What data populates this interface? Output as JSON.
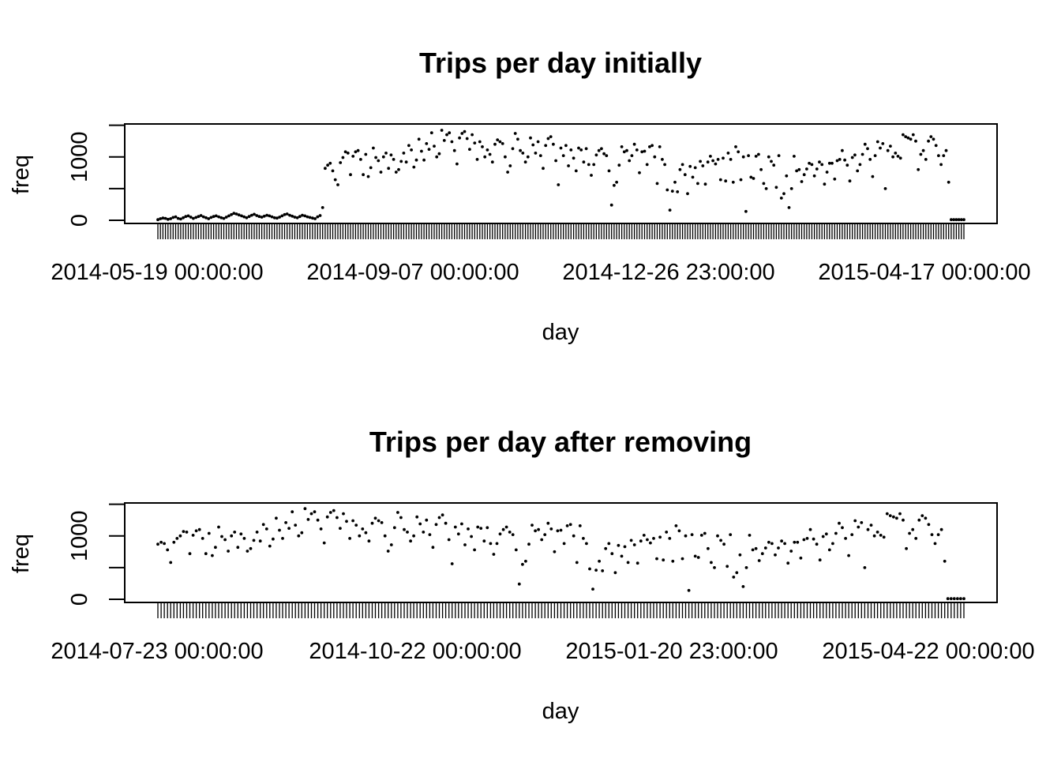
{
  "colors": {
    "background": "#ffffff",
    "ink": "#000000"
  },
  "chart_data": [
    {
      "type": "scatter",
      "title": "Trips per day initially",
      "xlabel": "day",
      "ylabel": "freq",
      "x_axis_kind": "categorical dates (one tick per day)",
      "x_range": [
        "2014-05-19 00:00:00",
        "2015-06-20 00:00:00"
      ],
      "x_tick_labels": [
        "2014-05-19 00:00:00",
        "2014-09-07 00:00:00",
        "2014-12-26 23:00:00",
        "2015-04-17 00:00:00"
      ],
      "ylim": [
        -50,
        1520
      ],
      "y_ticks": [
        0,
        1000
      ],
      "y_tick_labels": [
        "0",
        "1000"
      ],
      "grid": false,
      "legend": "none",
      "marker_color": "#000000",
      "series": [
        {
          "values": [
            10,
            25,
            35,
            30,
            15,
            25,
            45,
            55,
            30,
            20,
            40,
            60,
            70,
            50,
            30,
            45,
            60,
            75,
            55,
            40,
            25,
            45,
            60,
            70,
            55,
            40,
            30,
            50,
            70,
            90,
            110,
            100,
            85,
            70,
            55,
            40,
            60,
            80,
            95,
            75,
            60,
            50,
            65,
            80,
            70,
            55,
            40,
            35,
            50,
            70,
            90,
            100,
            80,
            65,
            50,
            40,
            60,
            80,
            70,
            55,
            45,
            35,
            25,
            55,
            75,
            200,
            820,
            870,
            900,
            780,
            640,
            560,
            910,
            990,
            1080,
            1060,
            720,
            1010,
            1080,
            1100,
            960,
            720,
            1040,
            690,
            830,
            1140,
            990,
            940,
            760,
            1000,
            1060,
            820,
            1030,
            960,
            760,
            800,
            930,
            1060,
            920,
            1180,
            1110,
            840,
            950,
            1280,
            1090,
            950,
            1210,
            1120,
            1380,
            1170,
            1000,
            1050,
            1420,
            1260,
            1350,
            1380,
            1240,
            1100,
            890,
            1300,
            1370,
            1400,
            1290,
            1120,
            1350,
            1220,
            960,
            1240,
            1160,
            1000,
            1110,
            1040,
            920,
            1200,
            1270,
            1240,
            1210,
            1000,
            760,
            860,
            1130,
            1370,
            1280,
            1100,
            1060,
            920,
            1000,
            1300,
            1190,
            1060,
            1240,
            1020,
            820,
            1180,
            1290,
            1320,
            1200,
            940,
            560,
            1140,
            1020,
            1180,
            860,
            1110,
            980,
            780,
            1140,
            1110,
            920,
            1130,
            880,
            710,
            880,
            1030,
            1100,
            1130,
            1050,
            1020,
            780,
            240,
            550,
            600,
            870,
            1160,
            1080,
            1100,
            940,
            1020,
            1200,
            1110,
            750,
            1080,
            1090,
            880,
            1160,
            1180,
            1000,
            580,
            1160,
            960,
            880,
            480,
            160,
            460,
            600,
            450,
            800,
            880,
            720,
            420,
            850,
            680,
            830,
            580,
            930,
            860,
            570,
            920,
            1010,
            940,
            890,
            960,
            640,
            980,
            620,
            1060,
            960,
            600,
            1160,
            1080,
            640,
            1000,
            140,
            1020,
            680,
            660,
            1010,
            1040,
            800,
            580,
            500,
            1000,
            930,
            870,
            520,
            1020,
            350,
            420,
            700,
            200,
            500,
            1010,
            780,
            800,
            610,
            720,
            810,
            900,
            880,
            700,
            810,
            920,
            880,
            570,
            760,
            900,
            900,
            650,
            940,
            960,
            1100,
            950,
            870,
            620,
            990,
            1030,
            780,
            880,
            1040,
            1200,
            1130,
            960,
            690,
            1020,
            1240,
            1140,
            1210,
            500,
            1100,
            1170,
            1000,
            1060,
            1010,
            980,
            1350,
            1320,
            1300,
            1280,
            1350,
            1250,
            800,
            1040,
            1100,
            960,
            1250,
            1320,
            1280,
            1180,
            1020,
            880,
            1020,
            1100,
            600,
            10,
            10,
            10,
            10,
            10,
            10
          ]
        }
      ]
    },
    {
      "type": "scatter",
      "title": "Trips per day after removing",
      "xlabel": "day",
      "ylabel": "freq",
      "x_axis_kind": "categorical dates (one tick per day)",
      "x_range": [
        "2014-07-23 00:00:00",
        "2015-06-20 00:00:00"
      ],
      "x_tick_labels": [
        "2014-07-23 00:00:00",
        "2014-10-22 00:00:00",
        "2015-01-20 23:00:00",
        "2015-04-22 00:00:00"
      ],
      "ylim": [
        -50,
        1520
      ],
      "y_ticks": [
        0,
        1000
      ],
      "y_tick_labels": [
        "0",
        "1000"
      ],
      "grid": false,
      "legend": "none",
      "marker_color": "#000000",
      "series": [
        {
          "values": [
            870,
            900,
            880,
            780,
            580,
            900,
            960,
            1000,
            1070,
            1060,
            720,
            1010,
            1080,
            1100,
            960,
            720,
            1040,
            690,
            820,
            1140,
            990,
            940,
            760,
            1000,
            1060,
            820,
            1030,
            960,
            760,
            800,
            930,
            1060,
            920,
            1180,
            1110,
            840,
            950,
            1280,
            1090,
            960,
            1210,
            1120,
            1380,
            1170,
            1000,
            1050,
            1430,
            1260,
            1350,
            1380,
            1250,
            1110,
            890,
            1300,
            1370,
            1400,
            1290,
            1120,
            1350,
            1230,
            960,
            1240,
            1170,
            1000,
            1110,
            1050,
            920,
            1200,
            1280,
            1240,
            1210,
            1000,
            760,
            860,
            1130,
            1370,
            1290,
            1100,
            1060,
            920,
            1000,
            1300,
            1190,
            1060,
            1250,
            1020,
            820,
            1180,
            1290,
            1330,
            1200,
            940,
            560,
            1140,
            1030,
            1190,
            860,
            1110,
            990,
            780,
            1140,
            1120,
            920,
            1130,
            880,
            710,
            880,
            1030,
            1100,
            1140,
            1060,
            1020,
            780,
            240,
            550,
            600,
            870,
            1170,
            1080,
            1100,
            940,
            1020,
            1200,
            1110,
            750,
            1080,
            1090,
            880,
            1160,
            1180,
            1000,
            580,
            1160,
            960,
            880,
            480,
            160,
            460,
            600,
            450,
            800,
            880,
            720,
            420,
            850,
            680,
            830,
            580,
            930,
            860,
            570,
            920,
            1010,
            940,
            890,
            960,
            640,
            980,
            620,
            1060,
            960,
            600,
            1160,
            1080,
            640,
            1000,
            140,
            1020,
            680,
            660,
            1010,
            1040,
            800,
            580,
            500,
            1000,
            930,
            870,
            520,
            1020,
            350,
            420,
            700,
            200,
            500,
            1010,
            780,
            800,
            610,
            720,
            810,
            900,
            880,
            700,
            810,
            920,
            880,
            570,
            760,
            900,
            900,
            650,
            940,
            960,
            1100,
            950,
            870,
            620,
            990,
            1030,
            780,
            880,
            1040,
            1200,
            1130,
            960,
            690,
            1020,
            1240,
            1140,
            1210,
            500,
            1100,
            1170,
            1000,
            1060,
            1010,
            980,
            1350,
            1320,
            1300,
            1280,
            1350,
            1250,
            800,
            1040,
            1100,
            960,
            1250,
            1320,
            1280,
            1180,
            1020,
            880,
            1020,
            1100,
            600,
            10,
            10,
            10,
            10,
            10,
            10
          ]
        }
      ]
    }
  ]
}
